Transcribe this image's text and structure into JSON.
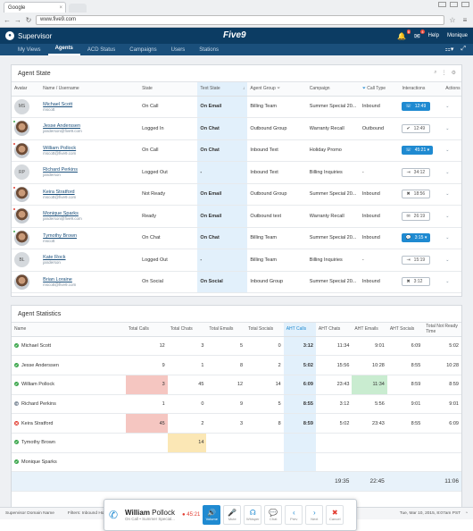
{
  "browser": {
    "tab_title": "Google",
    "url": "www.five9.com"
  },
  "app": {
    "title": "Supervisor",
    "brand": "Five9",
    "notif_count_1": "6",
    "notif_count_2": "4",
    "help": "Help",
    "user": "Monique"
  },
  "nav": {
    "tabs": [
      "My Views",
      "Agents",
      "ACD Status",
      "Campaigns",
      "Users",
      "Stations"
    ],
    "active": "Agents"
  },
  "agent_state": {
    "title": "Agent State",
    "columns": [
      "Avatar",
      "Name / Username",
      "State",
      "Text State",
      "Agent Group",
      "Campaign",
      "Call Type",
      "Interactions",
      "Actions"
    ],
    "rows": [
      {
        "initials": "MS",
        "photo": false,
        "status": "",
        "name": "Michael Scott",
        "user": "mscott",
        "state": "On Call",
        "text_state": "On Email",
        "group": "Billing Team",
        "campaign": "Summer Special 20...",
        "call_type": "Inbound",
        "inter": "12:49",
        "inter_icon": "☏",
        "inter_style": "blue"
      },
      {
        "initials": "",
        "photo": true,
        "status": "#3aa64b",
        "name": "Jesse Anderssen",
        "user": "janderson@five9.com",
        "state": "Logged In",
        "text_state": "On Chat",
        "group": "Outbound Group",
        "campaign": "Warranty Recall",
        "call_type": "Outbound",
        "inter": "12:49",
        "inter_icon": "✔",
        "inter_style": "white"
      },
      {
        "initials": "",
        "photo": true,
        "status": "#e23c30",
        "name": "William Pollock",
        "user": "mscott@five9.com",
        "state": "On Call",
        "text_state": "On Chat",
        "group": "Inbound Text",
        "campaign": "Holiday Promo",
        "call_type": "",
        "inter": "45:21 ▾",
        "inter_icon": "☏",
        "inter_style": "blue"
      },
      {
        "initials": "RP",
        "photo": false,
        "status": "",
        "name": "Richard Perkins",
        "user": "janderson",
        "state": "Logged Out",
        "text_state": "-",
        "group": "Inbound Text",
        "campaign": "Billing Inquiries",
        "call_type": "-",
        "inter": "34:12",
        "inter_icon": "⇥",
        "inter_style": "white"
      },
      {
        "initials": "",
        "photo": true,
        "status": "#e23c30",
        "name": "Keira Stratford",
        "user": "mscott@five9.com",
        "state": "Not Ready",
        "text_state": "On Email",
        "group": "Outbound Group",
        "campaign": "Summer Special 20...",
        "call_type": "Inbound",
        "inter": "18:56",
        "inter_icon": "✖",
        "inter_style": "white"
      },
      {
        "initials": "",
        "photo": true,
        "status": "#e23c30",
        "name": "Monique Sparks",
        "user": "janderson@five9.com",
        "state": "Ready",
        "text_state": "On Email",
        "group": "Outbound text",
        "campaign": "Warranty Recall",
        "call_type": "Inbound",
        "inter": "26:19",
        "inter_icon": "✉",
        "inter_style": "white"
      },
      {
        "initials": "",
        "photo": true,
        "status": "#3aa64b",
        "name": "Tymothy Brown",
        "user": "mscott",
        "state": "On Chat",
        "text_state": "On Chat",
        "group": "Billing Team",
        "campaign": "Summer Special 20...",
        "call_type": "Inbound",
        "inter": "3:15 ▾",
        "inter_icon": "💬",
        "inter_style": "blue"
      },
      {
        "initials": "BL",
        "photo": false,
        "status": "",
        "name": "Kate Rock",
        "user": "janderson",
        "state": "Logged Out",
        "text_state": "-",
        "group": "Billing Team",
        "campaign": "Billing Inquiries",
        "call_type": "-",
        "inter": "15:19",
        "inter_icon": "⇥",
        "inter_style": "white"
      },
      {
        "initials": "",
        "photo": true,
        "status": "",
        "name": "Brian Loraine",
        "user": "mscott@five9.com",
        "state": "On Social",
        "text_state": "On Social",
        "group": "Inbound Group",
        "campaign": "Summer Special 20...",
        "call_type": "Inbound",
        "inter": "3:12",
        "inter_icon": "✖",
        "inter_style": "white"
      }
    ]
  },
  "agent_stats": {
    "title": "Agent Statistics",
    "columns": [
      "Name",
      "Total Calls",
      "Total Chats",
      "Total Emails",
      "Total Socials",
      "AHT Calls",
      "AHT Chats",
      "AHT Emails",
      "AHT Socials",
      "Total Not Ready Time"
    ],
    "rows": [
      {
        "icon": "✔",
        "color": "#3aa64b",
        "name": "Michael Scott",
        "v": [
          "12",
          "3",
          "5",
          "0",
          "3:12",
          "11:34",
          "9:01",
          "6:09",
          "5:02"
        ],
        "hl": {}
      },
      {
        "icon": "✔",
        "color": "#3aa64b",
        "name": "Jesse Anderssen",
        "v": [
          "9",
          "1",
          "8",
          "2",
          "5:02",
          "15:56",
          "10:28",
          "8:55",
          "10:28"
        ],
        "hl": {}
      },
      {
        "icon": "✔",
        "color": "#3aa64b",
        "name": "William Pollock",
        "v": [
          "3",
          "45",
          "12",
          "14",
          "6:09",
          "23:43",
          "11:34",
          "8:59",
          "8:59"
        ],
        "hl": {
          "0": "red",
          "6": "grn"
        }
      },
      {
        "icon": "⇥",
        "color": "#8a96a3",
        "name": "Richard Perkins",
        "v": [
          "1",
          "0",
          "9",
          "5",
          "8:55",
          "3:12",
          "5:56",
          "9:01",
          "9:01"
        ],
        "hl": {}
      },
      {
        "icon": "✖",
        "color": "#e23c30",
        "name": "Keira Stratford",
        "v": [
          "45",
          "2",
          "3",
          "8",
          "8:59",
          "5:02",
          "23:43",
          "8:55",
          "6:09"
        ],
        "hl": {
          "0": "red"
        }
      },
      {
        "icon": "✔",
        "color": "#3aa64b",
        "name": "Tymothy Brown",
        "v": [
          "",
          "14",
          "",
          "",
          "",
          "",
          "",
          "",
          ""
        ],
        "hl": {
          "1": "yel"
        }
      },
      {
        "icon": "✔",
        "color": "#3aa64b",
        "name": "Monique Sparks",
        "v": [
          "",
          "",
          "",
          "",
          "",
          "",
          "",
          "",
          ""
        ],
        "hl": {}
      }
    ],
    "totals": [
      "",
      "",
      "",
      "",
      "19:35",
      "22:45",
      "",
      "11:06"
    ]
  },
  "callbar": {
    "name_first": "William",
    "name_last": "Pollock",
    "sub": "On Call • Summer Special...",
    "timer": "45:21",
    "buttons": [
      "Volume",
      "Mute",
      "Whisper",
      "Chat",
      "Prev",
      "Next",
      "Cancel"
    ]
  },
  "footer": {
    "domain": "Supervisor Domain Name",
    "filters": "Filters: Inbound Hour",
    "time_range": "Time Range: 1h • Campaign Period: 15m • Skills: 3 selected • Agent Groups: My Groups",
    "datetime": "Tue, Mar 10, 2015, 8:07am PST"
  }
}
